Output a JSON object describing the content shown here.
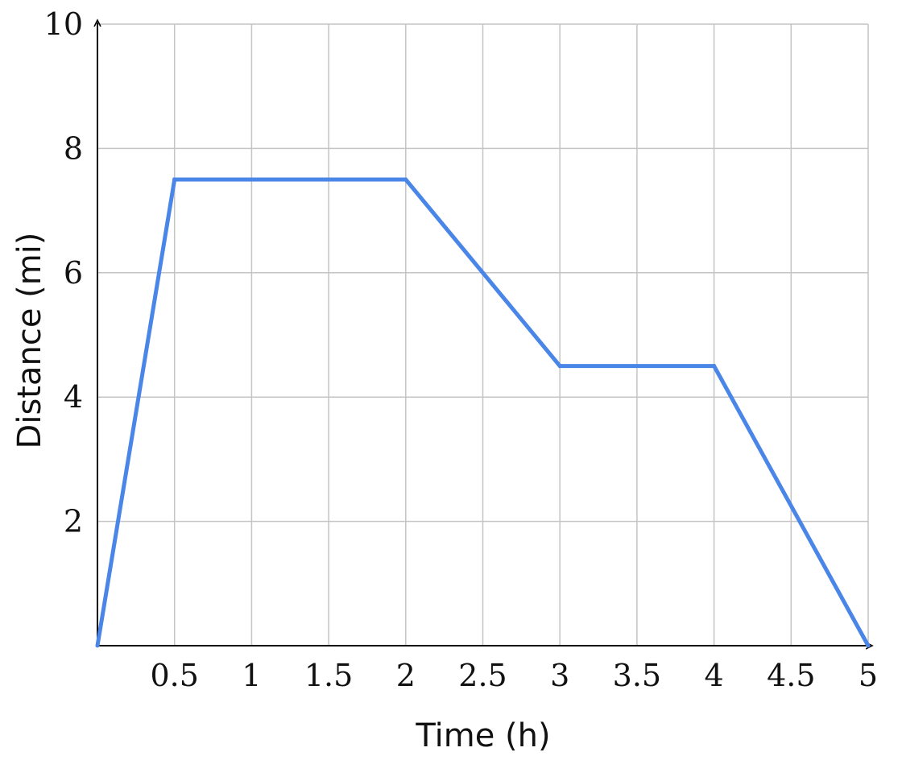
{
  "chart_data": {
    "type": "line",
    "title": "",
    "xlabel": "Time (h)",
    "ylabel": "Distance (mi)",
    "xlim": [
      0,
      5
    ],
    "ylim": [
      0,
      10
    ],
    "x_ticks": [
      0.5,
      1,
      1.5,
      2,
      2.5,
      3,
      3.5,
      4,
      4.5,
      5
    ],
    "x_tick_labels": [
      "0.5",
      "1",
      "1.5",
      "2",
      "2.5",
      "3",
      "3.5",
      "4",
      "4.5",
      "5"
    ],
    "y_ticks": [
      2,
      4,
      6,
      8,
      10
    ],
    "y_tick_labels": [
      "2",
      "4",
      "6",
      "8",
      "10"
    ],
    "grid": true,
    "series": [
      {
        "color": "#4a86e8",
        "points": [
          {
            "x": 0,
            "y": 0
          },
          {
            "x": 0.5,
            "y": 7.5
          },
          {
            "x": 2,
            "y": 7.5
          },
          {
            "x": 3,
            "y": 4.5
          },
          {
            "x": 4,
            "y": 4.5
          },
          {
            "x": 5,
            "y": 0
          }
        ]
      }
    ]
  }
}
